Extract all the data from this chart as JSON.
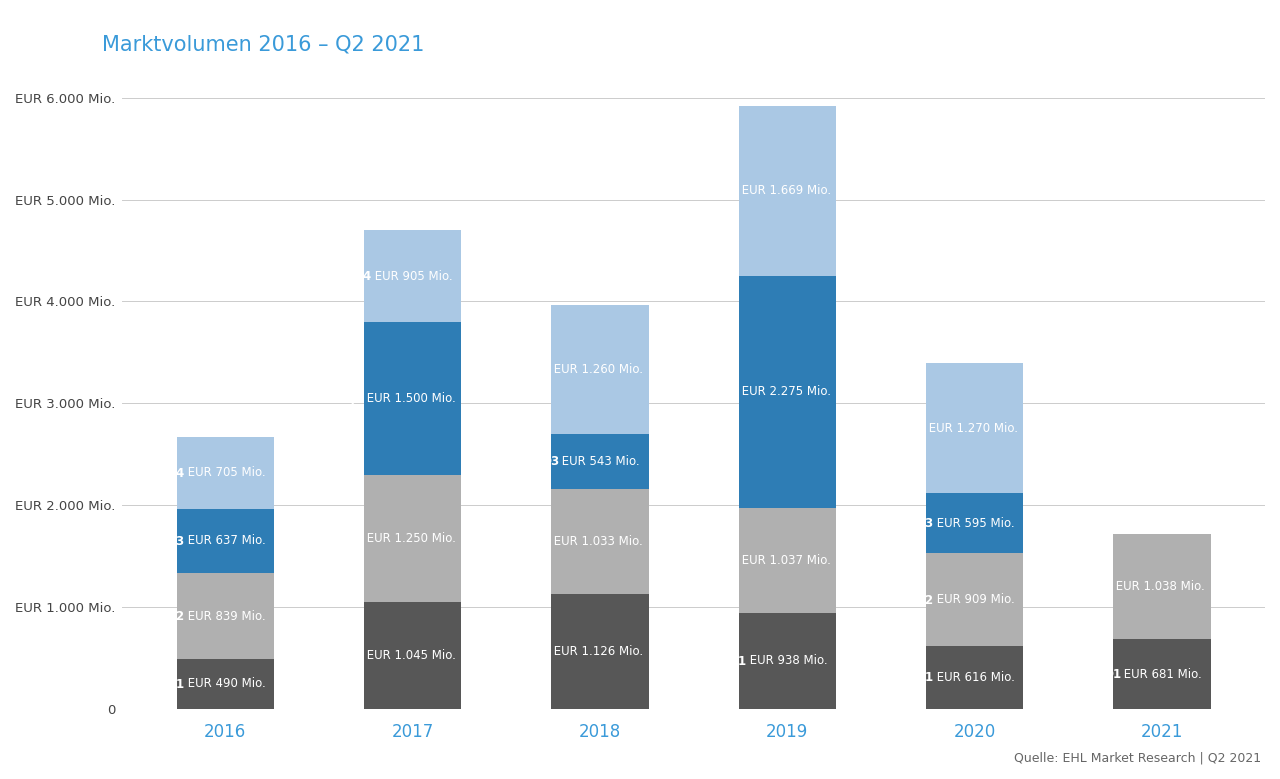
{
  "title": "Marktvolumen 2016 – Q2 2021",
  "years": [
    "2016",
    "2017",
    "2018",
    "2019",
    "2020",
    "2021"
  ],
  "q1": [
    490,
    1045,
    1126,
    938,
    616,
    681
  ],
  "q2": [
    839,
    1250,
    1033,
    1037,
    909,
    1038
  ],
  "q3": [
    637,
    1500,
    543,
    2275,
    595,
    0
  ],
  "q4": [
    705,
    905,
    1260,
    1669,
    1270,
    0
  ],
  "colors": {
    "q1": "#575757",
    "q2": "#b0b0b0",
    "q3": "#2e7db5",
    "q4": "#aac8e4"
  },
  "ylim": [
    0,
    6200
  ],
  "yticks": [
    0,
    1000,
    2000,
    3000,
    4000,
    5000,
    6000
  ],
  "ytick_labels": [
    "0",
    "EUR 1.000 Mio.",
    "EUR 2.000 Mio.",
    "EUR 3.000 Mio.",
    "EUR 4.000 Mio.",
    "EUR 5.000 Mio.",
    "EUR 6.000 Mio."
  ],
  "source": "Quelle: EHL Market Research | Q2 2021",
  "title_color": "#3a9ad9",
  "axis_label_color": "#3a9ad9",
  "background": "#ffffff",
  "label_fontsize": 8.5,
  "title_fontsize": 15,
  "bar_width": 0.52
}
